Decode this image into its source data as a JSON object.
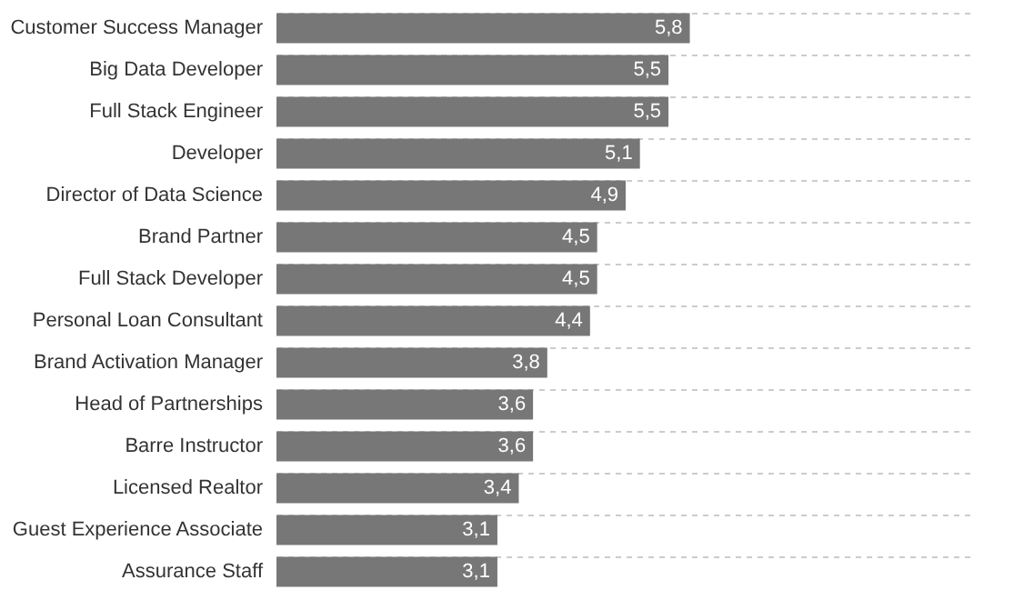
{
  "chart_data": {
    "type": "bar",
    "orientation": "horizontal",
    "categories": [
      "Customer Success Manager",
      "Big Data Developer",
      "Full Stack Engineer",
      "Developer",
      "Director of Data Science",
      "Brand Partner",
      "Full Stack Developer",
      "Personal Loan Consultant",
      "Brand Activation Manager",
      "Head of Partnerships",
      "Barre Instructor",
      "Licensed Realtor",
      "Guest Experience Associate",
      "Assurance Staff"
    ],
    "values": [
      5.8,
      5.5,
      5.5,
      5.1,
      4.9,
      4.5,
      4.5,
      4.4,
      3.8,
      3.6,
      3.6,
      3.4,
      3.1,
      3.1
    ],
    "value_labels": [
      "5,8",
      "5,5",
      "5,5",
      "5,1",
      "4,9",
      "4,5",
      "4,5",
      "4,4",
      "3,8",
      "3,6",
      "3,6",
      "3,4",
      "3,1",
      "3,1"
    ],
    "color": "#777777",
    "xlim": [
      0,
      9.8
    ],
    "tick_labels": "y",
    "grid": "y"
  }
}
